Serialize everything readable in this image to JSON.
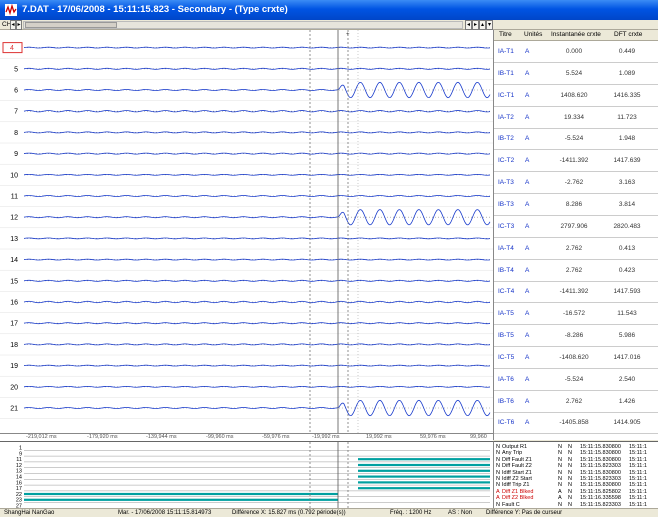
{
  "window": {
    "title": "7.DAT - 17/06/2008 - 15:11:15.823 - Secondary - (Type crxte)"
  },
  "toolbar": {
    "ch_label": "CH",
    "left_arrow": "◂",
    "right_arrow": "▸",
    "up_arrow": "▴",
    "down_arrow": "▾"
  },
  "colors": {
    "trace": "#1a3ccc",
    "digital_on": "#00a0a0",
    "cursor": "#777777",
    "text_blue": "#1533c8"
  },
  "columns": {
    "name": "Titre",
    "unit": "Unités",
    "inst": "Instantanée crxte",
    "dft": "DFT crxte"
  },
  "channels": [
    {
      "num": "4",
      "name": "IA-T1",
      "unit": "A",
      "inst": "0.000",
      "dft": "0.449",
      "fault": false,
      "amp": 0.05
    },
    {
      "num": "5",
      "name": "IB-T1",
      "unit": "A",
      "inst": "5.524",
      "dft": "1.089",
      "fault": false,
      "amp": 0.06
    },
    {
      "num": "6",
      "name": "IC-T1",
      "unit": "A",
      "inst": "1408.620",
      "dft": "1416.335",
      "fault": true,
      "amp": 0.9
    },
    {
      "num": "7",
      "name": "IA-T2",
      "unit": "A",
      "inst": "19.334",
      "dft": "11.723",
      "fault": false,
      "amp": 0.08
    },
    {
      "num": "8",
      "name": "IB-T2",
      "unit": "A",
      "inst": "-5.524",
      "dft": "1.948",
      "fault": false,
      "amp": 0.06
    },
    {
      "num": "9",
      "name": "IC-T2",
      "unit": "A",
      "inst": "-1411.392",
      "dft": "1417.639",
      "fault": false,
      "amp": 0.06
    },
    {
      "num": "10",
      "name": "IA-T3",
      "unit": "A",
      "inst": "-2.762",
      "dft": "3.163",
      "fault": false,
      "amp": 0.05
    },
    {
      "num": "11",
      "name": "IB-T3",
      "unit": "A",
      "inst": "8.286",
      "dft": "3.814",
      "fault": false,
      "amp": 0.06
    },
    {
      "num": "12",
      "name": "IC-T3",
      "unit": "A",
      "inst": "2797.906",
      "dft": "2820.483",
      "fault": true,
      "amp": 0.9
    },
    {
      "num": "13",
      "name": "IA-T4",
      "unit": "A",
      "inst": "2.762",
      "dft": "0.413",
      "fault": false,
      "amp": 0.05
    },
    {
      "num": "14",
      "name": "IB-T4",
      "unit": "A",
      "inst": "2.762",
      "dft": "0.423",
      "fault": false,
      "amp": 0.05
    },
    {
      "num": "15",
      "name": "IC-T4",
      "unit": "A",
      "inst": "-1411.392",
      "dft": "1417.593",
      "fault": false,
      "amp": 0.06
    },
    {
      "num": "16",
      "name": "IA-T5",
      "unit": "A",
      "inst": "-16.572",
      "dft": "11.543",
      "fault": false,
      "amp": 0.08
    },
    {
      "num": "17",
      "name": "IB-T5",
      "unit": "A",
      "inst": "-8.286",
      "dft": "5.986",
      "fault": false,
      "amp": 0.06
    },
    {
      "num": "18",
      "name": "IC-T5",
      "unit": "A",
      "inst": "-1408.620",
      "dft": "1417.016",
      "fault": false,
      "amp": 0.06
    },
    {
      "num": "19",
      "name": "IA-T6",
      "unit": "A",
      "inst": "-5.524",
      "dft": "2.540",
      "fault": false,
      "amp": 0.05
    },
    {
      "num": "20",
      "name": "IB-T6",
      "unit": "A",
      "inst": "2.762",
      "dft": "1.426",
      "fault": false,
      "amp": 0.05
    },
    {
      "num": "21",
      "name": "IC-T6",
      "unit": "A",
      "inst": "-1405.858",
      "dft": "1414.905",
      "fault": true,
      "amp": 0.9
    }
  ],
  "x_ticks": [
    "-219,012 ms",
    "-179,920 ms",
    "-139,944 ms",
    "-99,960 ms",
    "-59,976 ms",
    "-19,992 ms",
    "19,992 ms",
    "59,976 ms",
    "99,960"
  ],
  "digital_channels": [
    {
      "num": "1",
      "on": false
    },
    {
      "num": "9",
      "on": false
    },
    {
      "num": "11",
      "on": true
    },
    {
      "num": "12",
      "on": true
    },
    {
      "num": "13",
      "on": true
    },
    {
      "num": "14",
      "on": true
    },
    {
      "num": "16",
      "on": true
    },
    {
      "num": "17",
      "on": true
    },
    {
      "num": "22",
      "on": false
    },
    {
      "num": "23",
      "on": false
    },
    {
      "num": "27",
      "on": false
    }
  ],
  "events": [
    {
      "flag": "N",
      "label": "Output R1",
      "s1": "N",
      "s2": "N",
      "time": "15:11:15.830800",
      "time2": "15:11:1"
    },
    {
      "flag": "N",
      "label": "Any Trip",
      "s1": "N",
      "s2": "N",
      "time": "15:11:15.830800",
      "time2": "15:11:1"
    },
    {
      "flag": "N",
      "label": "Diff Fault Z1",
      "s1": "N",
      "s2": "N",
      "time": "15:11:15.830800",
      "time2": "15:11:1"
    },
    {
      "flag": "N",
      "label": "Diff Fault Z2",
      "s1": "N",
      "s2": "N",
      "time": "15:11:15.823303",
      "time2": "15:11:1"
    },
    {
      "flag": "N",
      "label": "Idiff Start Z1",
      "s1": "N",
      "s2": "N",
      "time": "15:11:15.830800",
      "time2": "15:11:1"
    },
    {
      "flag": "N",
      "label": "Idiff Z2 Start",
      "s1": "N",
      "s2": "N",
      "time": "15:11:15.823303",
      "time2": "15:11:1"
    },
    {
      "flag": "N",
      "label": "Idiff Trip Z1",
      "s1": "N",
      "s2": "N",
      "time": "15:11:15.830800",
      "time2": "15:11:1"
    },
    {
      "flag": "A",
      "label": "Diff Z1 Blked",
      "s1": "A",
      "s2": "N",
      "time": "15:11:15.825802",
      "time2": "15:11:1"
    },
    {
      "flag": "A",
      "label": "Diff Z2 Blked",
      "s1": "A",
      "s2": "N",
      "time": "15:11:16.335598",
      "time2": "15:11:1"
    },
    {
      "flag": "N",
      "label": "Fault C",
      "s1": "N",
      "s2": "N",
      "time": "15:11:15.823303",
      "time2": "15:11:1"
    }
  ],
  "status": {
    "operator": "ShangHai NanGao",
    "marker": "Mar. - 17/06/2008 15:11:15.814973",
    "diff_x": "Différence X: 15.827 ms (0.792 période(s))",
    "freq": "Fréq. : 1200 Hz",
    "as": "AS : Non",
    "diff_y": "Différence Y: Pas de curseur"
  }
}
